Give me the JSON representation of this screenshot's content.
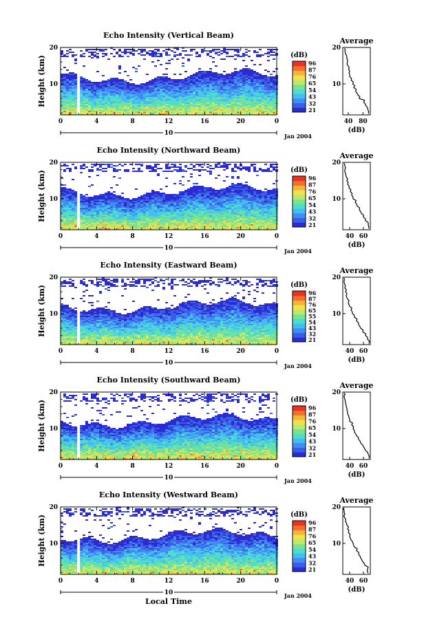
{
  "xlabel": "Local Time",
  "colors": [
    "#2b2bd1",
    "#3a5ee6",
    "#3f8ff2",
    "#45bdf0",
    "#4fdccb",
    "#7be38f",
    "#bde86b",
    "#f0e24c",
    "#f6b43a",
    "#f0702d",
    "#e83324"
  ],
  "chart_data": [
    {
      "type": "heatmap",
      "title": "Echo Intensity (Vertical Beam)",
      "ylabel": "Height (km)",
      "y_ticks": [
        "20",
        "10"
      ],
      "x_ticks": [
        "0",
        "4",
        "8",
        "12",
        "16",
        "20",
        "0"
      ],
      "xlim": [
        0,
        24
      ],
      "ylim": [
        1.5,
        20
      ],
      "date_mark": "10",
      "date_label": "Jan 2004",
      "data_gap_hour": 2,
      "colorbar": {
        "unit": "(dB)",
        "ticks": [
          "96",
          "87",
          "76",
          "65",
          "54",
          "43",
          "32",
          "21"
        ],
        "range": [
          21,
          96
        ]
      },
      "profile": {
        "title": "Average",
        "xlabel": "(dB)",
        "x_ticks": [
          "40",
          "80"
        ],
        "xlim": [
          25,
          100
        ],
        "y_ticks": [
          "20",
          "10"
        ],
        "height": [
          1.8,
          3,
          4,
          5,
          6,
          7,
          8,
          9,
          10,
          11,
          12,
          13,
          14,
          15,
          16,
          17,
          18,
          19,
          19.8
        ],
        "intensity": [
          95,
          93,
          88,
          82,
          70,
          66,
          60,
          55,
          52,
          48,
          44,
          42,
          41,
          39,
          38,
          36,
          34,
          31,
          30
        ]
      }
    },
    {
      "type": "heatmap",
      "title": "Echo Intensity (Northward Beam)",
      "ylabel": "Height (km)",
      "y_ticks": [
        "20",
        "10"
      ],
      "x_ticks": [
        "0",
        "4",
        "8",
        "12",
        "16",
        "20",
        "0"
      ],
      "xlim": [
        0,
        24
      ],
      "ylim": [
        1.5,
        20
      ],
      "date_mark": "10",
      "date_label": "Jan 2004",
      "data_gap_hour": 2,
      "colorbar": {
        "unit": "(dB)",
        "ticks": [
          "96",
          "87",
          "76",
          "65",
          "54",
          "43",
          "32",
          "21"
        ],
        "range": [
          21,
          96
        ]
      },
      "profile": {
        "title": "Average",
        "xlabel": "(dB)",
        "x_ticks": [
          "40",
          "60"
        ],
        "xlim": [
          30,
          70
        ],
        "y_ticks": [
          "20",
          "10"
        ],
        "height": [
          1.8,
          3,
          4,
          5,
          6,
          7,
          8,
          9,
          10,
          11,
          12,
          13,
          14,
          15,
          16,
          17,
          18,
          19,
          19.8
        ],
        "intensity": [
          68,
          67,
          63,
          60,
          57,
          54,
          51,
          48,
          45,
          43,
          41,
          39,
          37,
          36,
          35,
          34,
          33,
          33,
          32
        ]
      }
    },
    {
      "type": "heatmap",
      "title": "Echo Intensity (Eastward Beam)",
      "ylabel": "Height (km)",
      "y_ticks": [
        "20",
        "10"
      ],
      "x_ticks": [
        "0",
        "4",
        "8",
        "12",
        "16",
        "20",
        "0"
      ],
      "xlim": [
        0,
        24
      ],
      "ylim": [
        1.5,
        20
      ],
      "date_mark": "10",
      "date_label": "Jan 2004",
      "data_gap_hour": 2,
      "colorbar": {
        "unit": "(dB)",
        "ticks": [
          "96",
          "87",
          "76",
          "65",
          "55",
          "54",
          "43",
          "32",
          "21"
        ],
        "range": [
          21,
          96
        ]
      },
      "profile": {
        "title": "Average",
        "xlabel": "(dB)",
        "x_ticks": [
          "40",
          "60"
        ],
        "xlim": [
          30,
          70
        ],
        "y_ticks": [
          "20",
          "10"
        ],
        "height": [
          1.8,
          3,
          4,
          5,
          6,
          7,
          8,
          9,
          10,
          11,
          12,
          13,
          14,
          15,
          16,
          17,
          18,
          19,
          19.8
        ],
        "intensity": [
          68,
          66,
          63,
          59,
          56,
          53,
          50,
          47,
          44,
          42,
          40,
          38,
          37,
          35,
          34,
          33,
          33,
          32,
          32
        ]
      }
    },
    {
      "type": "heatmap",
      "title": "Echo Intensity (Southward Beam)",
      "ylabel": "Height (km)",
      "y_ticks": [
        "20",
        "10"
      ],
      "x_ticks": [
        "0",
        "4",
        "8",
        "12",
        "16",
        "20",
        "0"
      ],
      "xlim": [
        0,
        24
      ],
      "ylim": [
        1.5,
        20
      ],
      "date_mark": "10",
      "date_label": "Jan 2004",
      "data_gap_hour": 2,
      "colorbar": {
        "unit": "(dB)",
        "ticks": [
          "96",
          "87",
          "76",
          "65",
          "54",
          "43",
          "32",
          "21"
        ],
        "range": [
          21,
          96
        ]
      },
      "profile": {
        "title": "Average",
        "xlabel": "(dB)",
        "x_ticks": [
          "40",
          "60"
        ],
        "xlim": [
          30,
          70
        ],
        "y_ticks": [
          "20",
          "10"
        ],
        "height": [
          1.8,
          3,
          4,
          5,
          6,
          7,
          8,
          9,
          10,
          11,
          12,
          13,
          14,
          15,
          16,
          17,
          18,
          19,
          19.8
        ],
        "intensity": [
          68,
          67,
          63,
          60,
          56,
          53,
          50,
          47,
          45,
          43,
          40,
          39,
          37,
          36,
          35,
          34,
          33,
          32,
          32
        ]
      }
    },
    {
      "type": "heatmap",
      "title": "Echo Intensity (Westward Beam)",
      "ylabel": "Height (km)",
      "y_ticks": [
        "20",
        "10"
      ],
      "x_ticks": [
        "0",
        "4",
        "8",
        "12",
        "16",
        "20",
        "0"
      ],
      "xlim": [
        0,
        24
      ],
      "ylim": [
        1.5,
        20
      ],
      "date_mark": "10",
      "date_label": "Jan 2004",
      "data_gap_hour": 2,
      "colorbar": {
        "unit": "(dB)",
        "ticks": [
          "96",
          "87",
          "76",
          "65",
          "54",
          "43",
          "32",
          "21"
        ],
        "range": [
          21,
          96
        ]
      },
      "profile": {
        "title": "Average",
        "xlabel": "(dB)",
        "x_ticks": [
          "40",
          "60"
        ],
        "xlim": [
          30,
          70
        ],
        "y_ticks": [
          "20",
          "10"
        ],
        "height": [
          1.8,
          3,
          4,
          5,
          6,
          7,
          8,
          9,
          10,
          11,
          12,
          13,
          14,
          15,
          16,
          17,
          18,
          19,
          19.8
        ],
        "intensity": [
          67,
          66,
          62,
          59,
          56,
          53,
          50,
          47,
          45,
          42,
          40,
          38,
          37,
          36,
          34,
          33,
          33,
          32,
          32
        ]
      }
    }
  ]
}
